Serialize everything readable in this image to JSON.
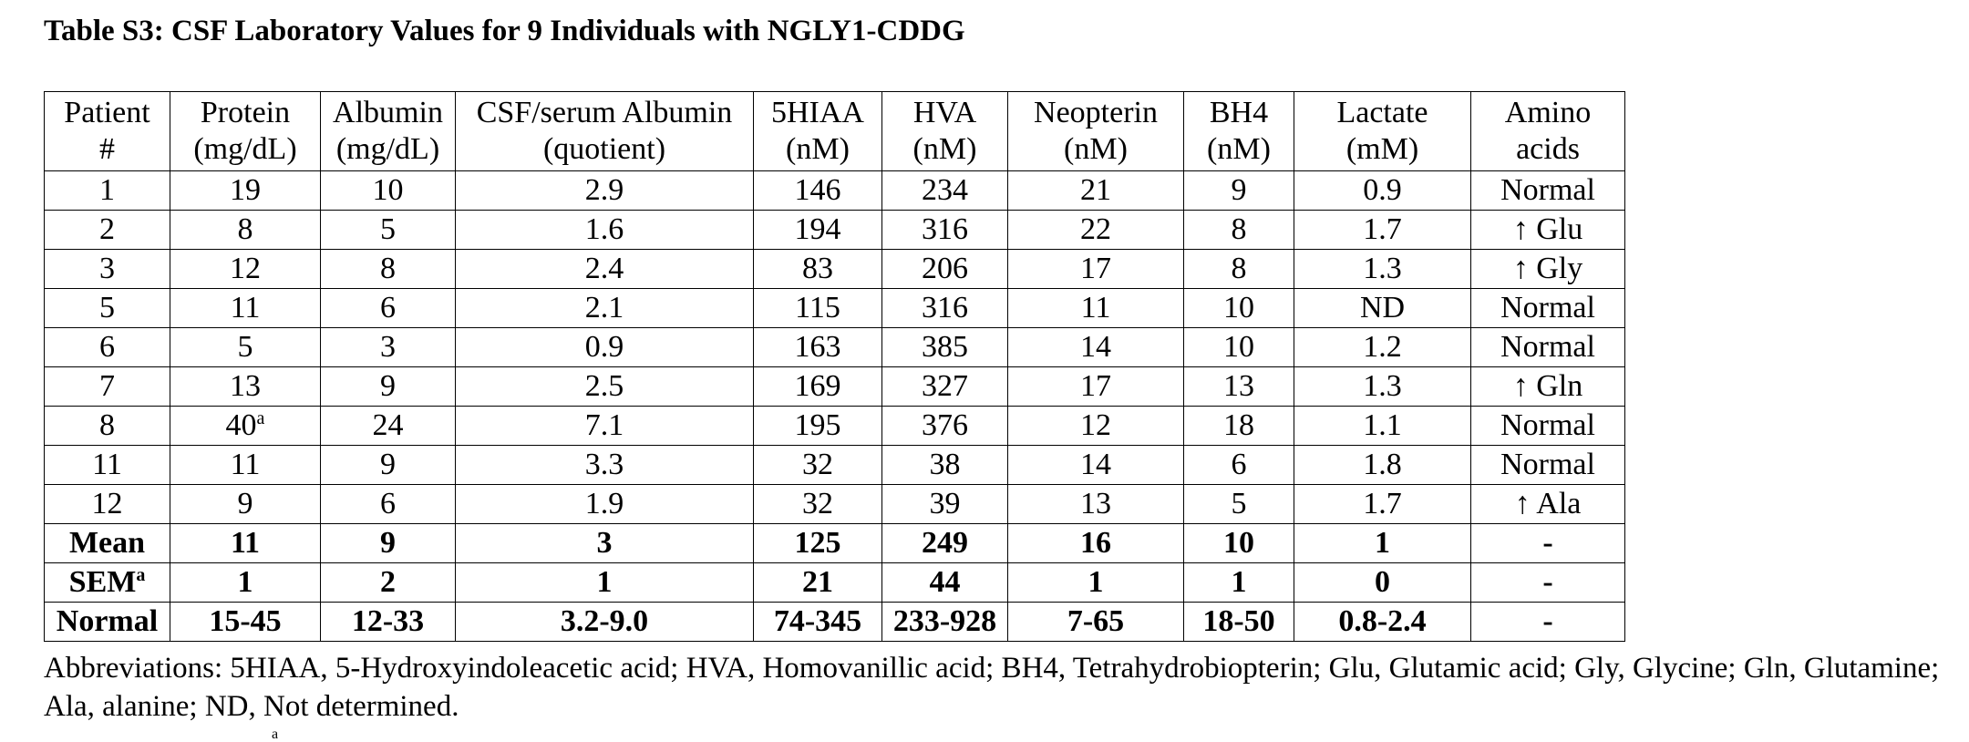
{
  "title": "Table S3: CSF Laboratory Values for 9 Individuals with NGLY1-CDDG",
  "table": {
    "headers": [
      {
        "line1": "Patient",
        "line2": "#"
      },
      {
        "line1": "Protein",
        "line2": "(mg/dL)"
      },
      {
        "line1": "Albumin",
        "line2": "(mg/dL)"
      },
      {
        "line1": "CSF/serum Albumin",
        "line2": "(quotient)"
      },
      {
        "line1": "5HIAA",
        "line2": "(nM)"
      },
      {
        "line1": "HVA",
        "line2": "(nM)"
      },
      {
        "line1": "Neopterin",
        "line2": "(nM)"
      },
      {
        "line1": "BH4",
        "line2": "(nM)"
      },
      {
        "line1": "Lactate",
        "line2": "(mM)"
      },
      {
        "line1": "Amino",
        "line2": "acids"
      }
    ],
    "rows": [
      [
        "1",
        "19",
        "10",
        "2.9",
        "146",
        "234",
        "21",
        "9",
        "0.9",
        "Normal"
      ],
      [
        "2",
        "8",
        "5",
        "1.6",
        "194",
        "316",
        "22",
        "8",
        "1.7",
        "↑ Glu"
      ],
      [
        "3",
        "12",
        "8",
        "2.4",
        "83",
        "206",
        "17",
        "8",
        "1.3",
        "↑ Gly"
      ],
      [
        "5",
        "11",
        "6",
        "2.1",
        "115",
        "316",
        "11",
        "10",
        "ND",
        "Normal"
      ],
      [
        "6",
        "5",
        "3",
        "0.9",
        "163",
        "385",
        "14",
        "10",
        "1.2",
        "Normal"
      ],
      [
        "7",
        "13",
        "9",
        "2.5",
        "169",
        "327",
        "17",
        "13",
        "1.3",
        "↑ Gln"
      ],
      [
        "8",
        "40",
        "24",
        "7.1",
        "195",
        "376",
        "12",
        "18",
        "1.1",
        "Normal"
      ],
      [
        "11",
        "11",
        "9",
        "3.3",
        "32",
        "38",
        "14",
        "6",
        "1.8",
        "Normal"
      ],
      [
        "12",
        "9",
        "6",
        "1.9",
        "32",
        "39",
        "13",
        "5",
        "1.7",
        "↑ Ala"
      ]
    ],
    "row8_protein_sup": "a",
    "summary": [
      [
        "Mean",
        "11",
        "9",
        "3",
        "125",
        "249",
        "16",
        "10",
        "1",
        "-"
      ],
      [
        "SEM",
        "1",
        "2",
        "1",
        "21",
        "44",
        "1",
        "1",
        "0",
        "-"
      ],
      [
        "Normal",
        "15-45",
        "12-33",
        "3.2-9.0",
        "74-345",
        "233-928",
        "7-65",
        "18-50",
        "0.8-2.4",
        "-"
      ]
    ],
    "sem_sup": "a"
  },
  "footer": {
    "abbreviations": "Abbreviations: 5HIAA, 5-Hydroxyindoleacetic acid; HVA, Homovanillic acid; BH4, Tetrahydrobiopterin; Glu, Glutamic acid; Gly, Glycine; Gln, Glutamine; Ala, alanine; ND, Not determined.",
    "cut_sup": "a"
  }
}
